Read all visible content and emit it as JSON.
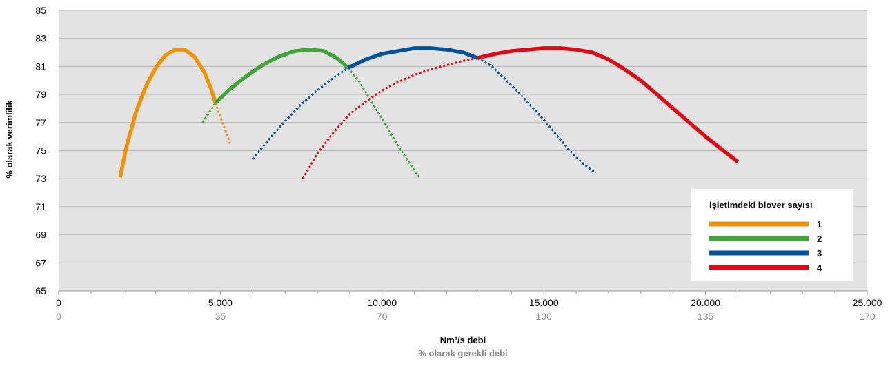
{
  "chart_data": {
    "type": "line",
    "xlabel": "Nm³/s debi",
    "xlabel_secondary": "% olarak gerekli debi",
    "ylabel": "% olarak verimlilik",
    "xlim": [
      0,
      25000
    ],
    "ylim": [
      65,
      85
    ],
    "x_ticks": [
      "0",
      "5.000",
      "10.000",
      "15.000",
      "20.000",
      "25.000"
    ],
    "x_ticks_secondary": [
      "0",
      "35",
      "70",
      "100",
      "135",
      "170"
    ],
    "y_ticks": [
      "65",
      "67",
      "69",
      "71",
      "73",
      "75",
      "77",
      "79",
      "81",
      "83",
      "85"
    ],
    "grid": true,
    "legend": {
      "title": "İşletimdeki blover sayısı",
      "placement": "bottom-right"
    },
    "series": [
      {
        "name": "1",
        "color": "#f39200",
        "solid": [
          [
            1900,
            73.1
          ],
          [
            2100,
            75.3
          ],
          [
            2400,
            77.8
          ],
          [
            2700,
            79.6
          ],
          [
            3000,
            80.9
          ],
          [
            3300,
            81.8
          ],
          [
            3600,
            82.2
          ],
          [
            3900,
            82.2
          ],
          [
            4200,
            81.7
          ],
          [
            4500,
            80.6
          ],
          [
            4700,
            79.5
          ],
          [
            4850,
            78.4
          ]
        ],
        "dotted": [
          [
            4850,
            78.4
          ],
          [
            5000,
            77.4
          ],
          [
            5150,
            76.5
          ],
          [
            5300,
            75.5
          ]
        ]
      },
      {
        "name": "2",
        "color": "#3fa535",
        "solid": [
          [
            4850,
            78.4
          ],
          [
            5300,
            79.4
          ],
          [
            5800,
            80.3
          ],
          [
            6300,
            81.1
          ],
          [
            6800,
            81.7
          ],
          [
            7300,
            82.1
          ],
          [
            7800,
            82.2
          ],
          [
            8200,
            82.1
          ],
          [
            8600,
            81.6
          ],
          [
            8950,
            80.9
          ]
        ],
        "dotted": [
          [
            4450,
            77.0
          ],
          [
            4850,
            78.4
          ],
          [
            8950,
            80.9
          ],
          [
            9300,
            79.9
          ],
          [
            9700,
            78.4
          ],
          [
            10100,
            76.9
          ],
          [
            10500,
            75.3
          ],
          [
            10850,
            74.1
          ],
          [
            11150,
            73.1
          ]
        ]
      },
      {
        "name": "3",
        "color": "#00519e",
        "solid": [
          [
            8950,
            80.9
          ],
          [
            9500,
            81.5
          ],
          [
            10000,
            81.9
          ],
          [
            10500,
            82.1
          ],
          [
            11000,
            82.3
          ],
          [
            11500,
            82.3
          ],
          [
            12000,
            82.2
          ],
          [
            12500,
            82.0
          ],
          [
            12950,
            81.6
          ]
        ],
        "dotted": [
          [
            6000,
            74.4
          ],
          [
            6500,
            75.8
          ],
          [
            7000,
            77.1
          ],
          [
            7500,
            78.3
          ],
          [
            8000,
            79.3
          ],
          [
            8500,
            80.2
          ],
          [
            8950,
            80.9
          ],
          [
            12950,
            81.6
          ],
          [
            13400,
            81.0
          ],
          [
            13800,
            80.1
          ],
          [
            14200,
            79.2
          ],
          [
            14600,
            78.2
          ],
          [
            15000,
            77.2
          ],
          [
            15400,
            76.1
          ],
          [
            15800,
            75.0
          ],
          [
            16200,
            74.1
          ],
          [
            16600,
            73.4
          ]
        ]
      },
      {
        "name": "4",
        "color": "#e30613",
        "solid": [
          [
            12950,
            81.6
          ],
          [
            13500,
            81.9
          ],
          [
            14000,
            82.1
          ],
          [
            14500,
            82.2
          ],
          [
            15000,
            82.3
          ],
          [
            15500,
            82.3
          ],
          [
            16000,
            82.2
          ],
          [
            16500,
            82.0
          ],
          [
            17000,
            81.5
          ],
          [
            17500,
            80.8
          ],
          [
            18000,
            80.0
          ],
          [
            18500,
            79.0
          ],
          [
            19000,
            78.0
          ],
          [
            19500,
            77.0
          ],
          [
            20000,
            76.0
          ],
          [
            20500,
            75.1
          ],
          [
            21000,
            74.2
          ]
        ],
        "dotted": [
          [
            7550,
            73.0
          ],
          [
            8000,
            74.8
          ],
          [
            8500,
            76.3
          ],
          [
            9000,
            77.6
          ],
          [
            9500,
            78.5
          ],
          [
            10000,
            79.3
          ],
          [
            10500,
            79.9
          ],
          [
            11000,
            80.4
          ],
          [
            11500,
            80.8
          ],
          [
            12000,
            81.1
          ],
          [
            12500,
            81.4
          ],
          [
            12950,
            81.6
          ]
        ]
      }
    ]
  }
}
